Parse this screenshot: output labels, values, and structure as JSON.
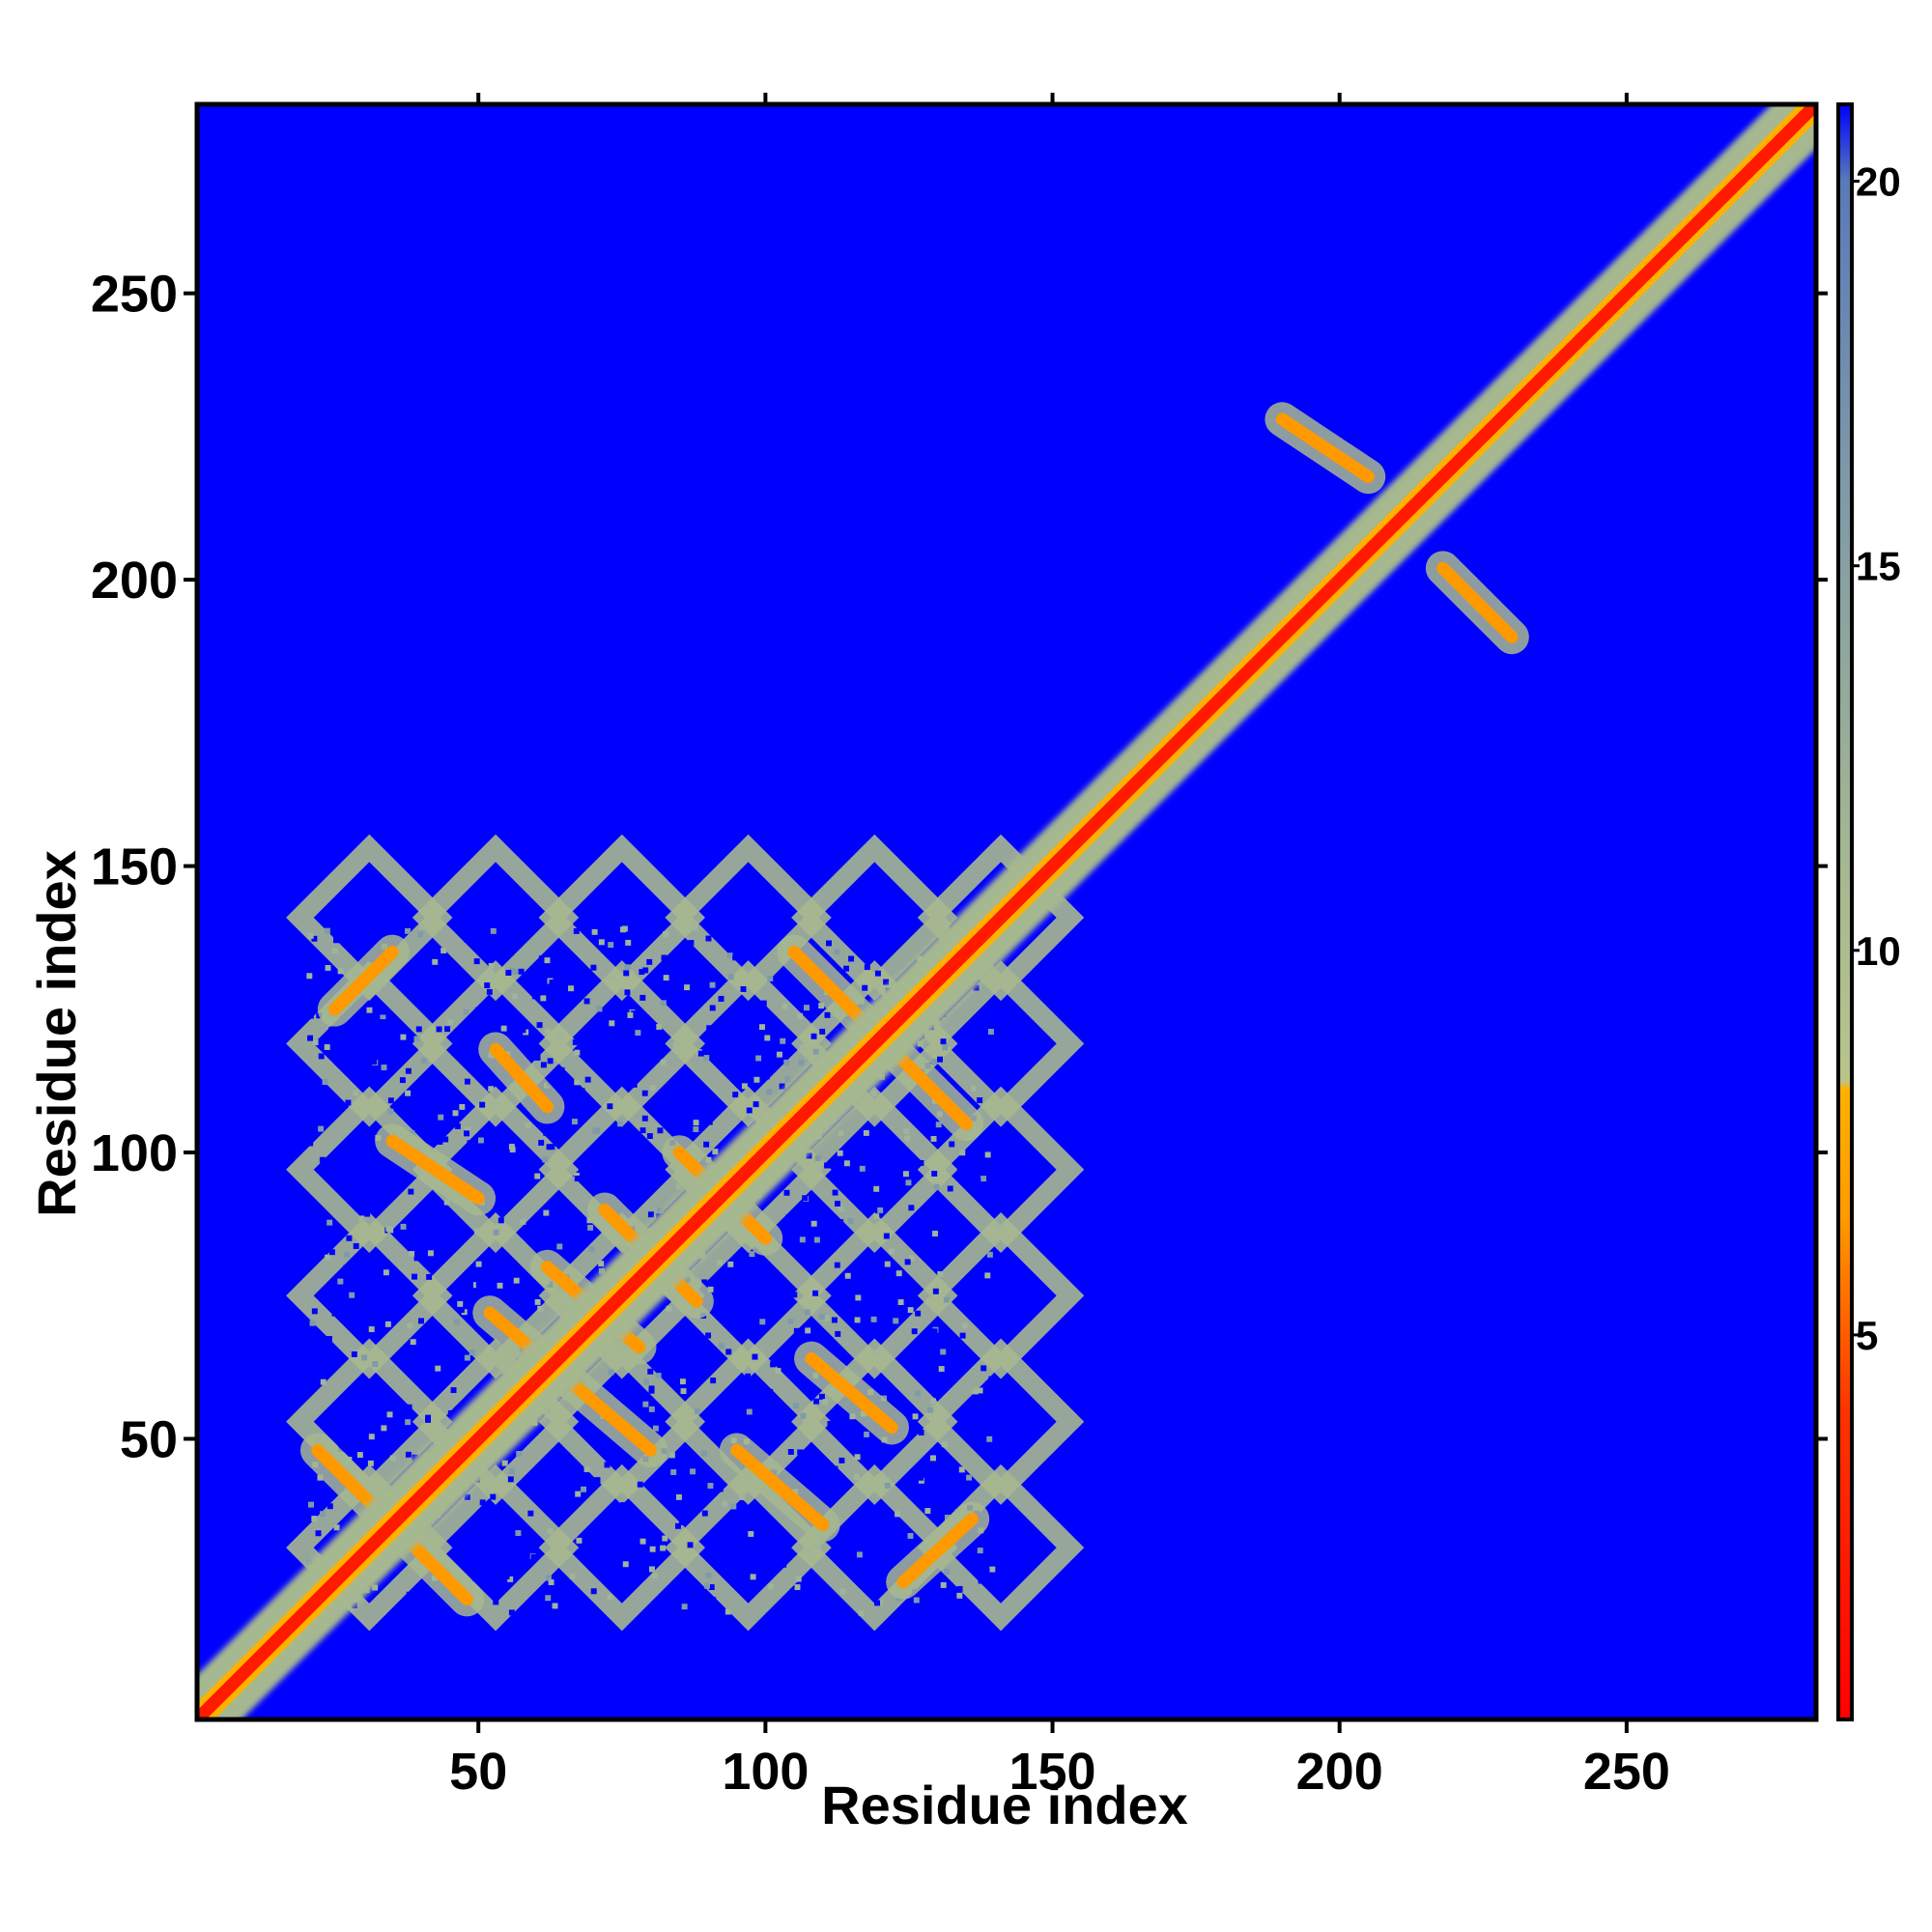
{
  "chart_data": {
    "type": "heatmap",
    "title": "",
    "xlabel": "Residue index",
    "ylabel": "Residue index",
    "xlim": [
      1,
      283
    ],
    "ylim": [
      1,
      283
    ],
    "x_ticks": [
      "50",
      "100",
      "150",
      "200",
      "250"
    ],
    "y_ticks": [
      "50",
      "100",
      "150",
      "200",
      "250"
    ],
    "x_tick_values": [
      50,
      100,
      150,
      200,
      250
    ],
    "y_tick_values": [
      50,
      100,
      150,
      200,
      250
    ],
    "grid": false,
    "colorbar": {
      "min": 0,
      "max": 21,
      "ticks": [
        "5",
        "10",
        "15",
        "20"
      ],
      "tick_values": [
        5,
        10,
        15,
        20
      ],
      "stops": [
        {
          "value": 0,
          "color": "#ff0000"
        },
        {
          "value": 4,
          "color": "#ff3300"
        },
        {
          "value": 6.5,
          "color": "#ff9900"
        },
        {
          "value": 8.2,
          "color": "#ffb000"
        },
        {
          "value": 8.3,
          "color": "#b8c48a"
        },
        {
          "value": 11,
          "color": "#a6b890"
        },
        {
          "value": 16,
          "color": "#7f9aa8"
        },
        {
          "value": 20,
          "color": "#5a7ab8"
        },
        {
          "value": 21,
          "color": "#0000ff"
        }
      ]
    },
    "background_color": "#0000ff",
    "features": {
      "diagonal": {
        "from": 1,
        "to": 283
      },
      "block_region": {
        "x": [
          20,
          140
        ],
        "y": [
          20,
          140
        ]
      },
      "off_diagonal_streaks": [
        {
          "x": [
            22,
            48
          ],
          "y": [
            48,
            22
          ]
        },
        {
          "x": [
            25,
            35
          ],
          "y": [
            125,
            135
          ]
        },
        {
          "x": [
            35,
            50
          ],
          "y": [
            102,
            92
          ]
        },
        {
          "x": [
            53,
            62
          ],
          "y": [
            118,
            108
          ]
        },
        {
          "x": [
            52,
            80
          ],
          "y": [
            72,
            48
          ]
        },
        {
          "x": [
            62,
            78
          ],
          "y": [
            80,
            66
          ]
        },
        {
          "x": [
            72,
            88
          ],
          "y": [
            90,
            74
          ]
        },
        {
          "x": [
            85,
            100
          ],
          "y": [
            100,
            85
          ]
        },
        {
          "x": [
            95,
            110
          ],
          "y": [
            48,
            35
          ]
        },
        {
          "x": [
            108,
            122
          ],
          "y": [
            64,
            52
          ]
        },
        {
          "x": [
            105,
            135
          ],
          "y": [
            135,
            105
          ]
        },
        {
          "x": [
            124,
            136
          ],
          "y": [
            25,
            36
          ]
        },
        {
          "x": [
            190,
            205
          ],
          "y": [
            228,
            218
          ]
        },
        {
          "x": [
            218,
            230
          ],
          "y": [
            202,
            190
          ]
        }
      ]
    }
  }
}
